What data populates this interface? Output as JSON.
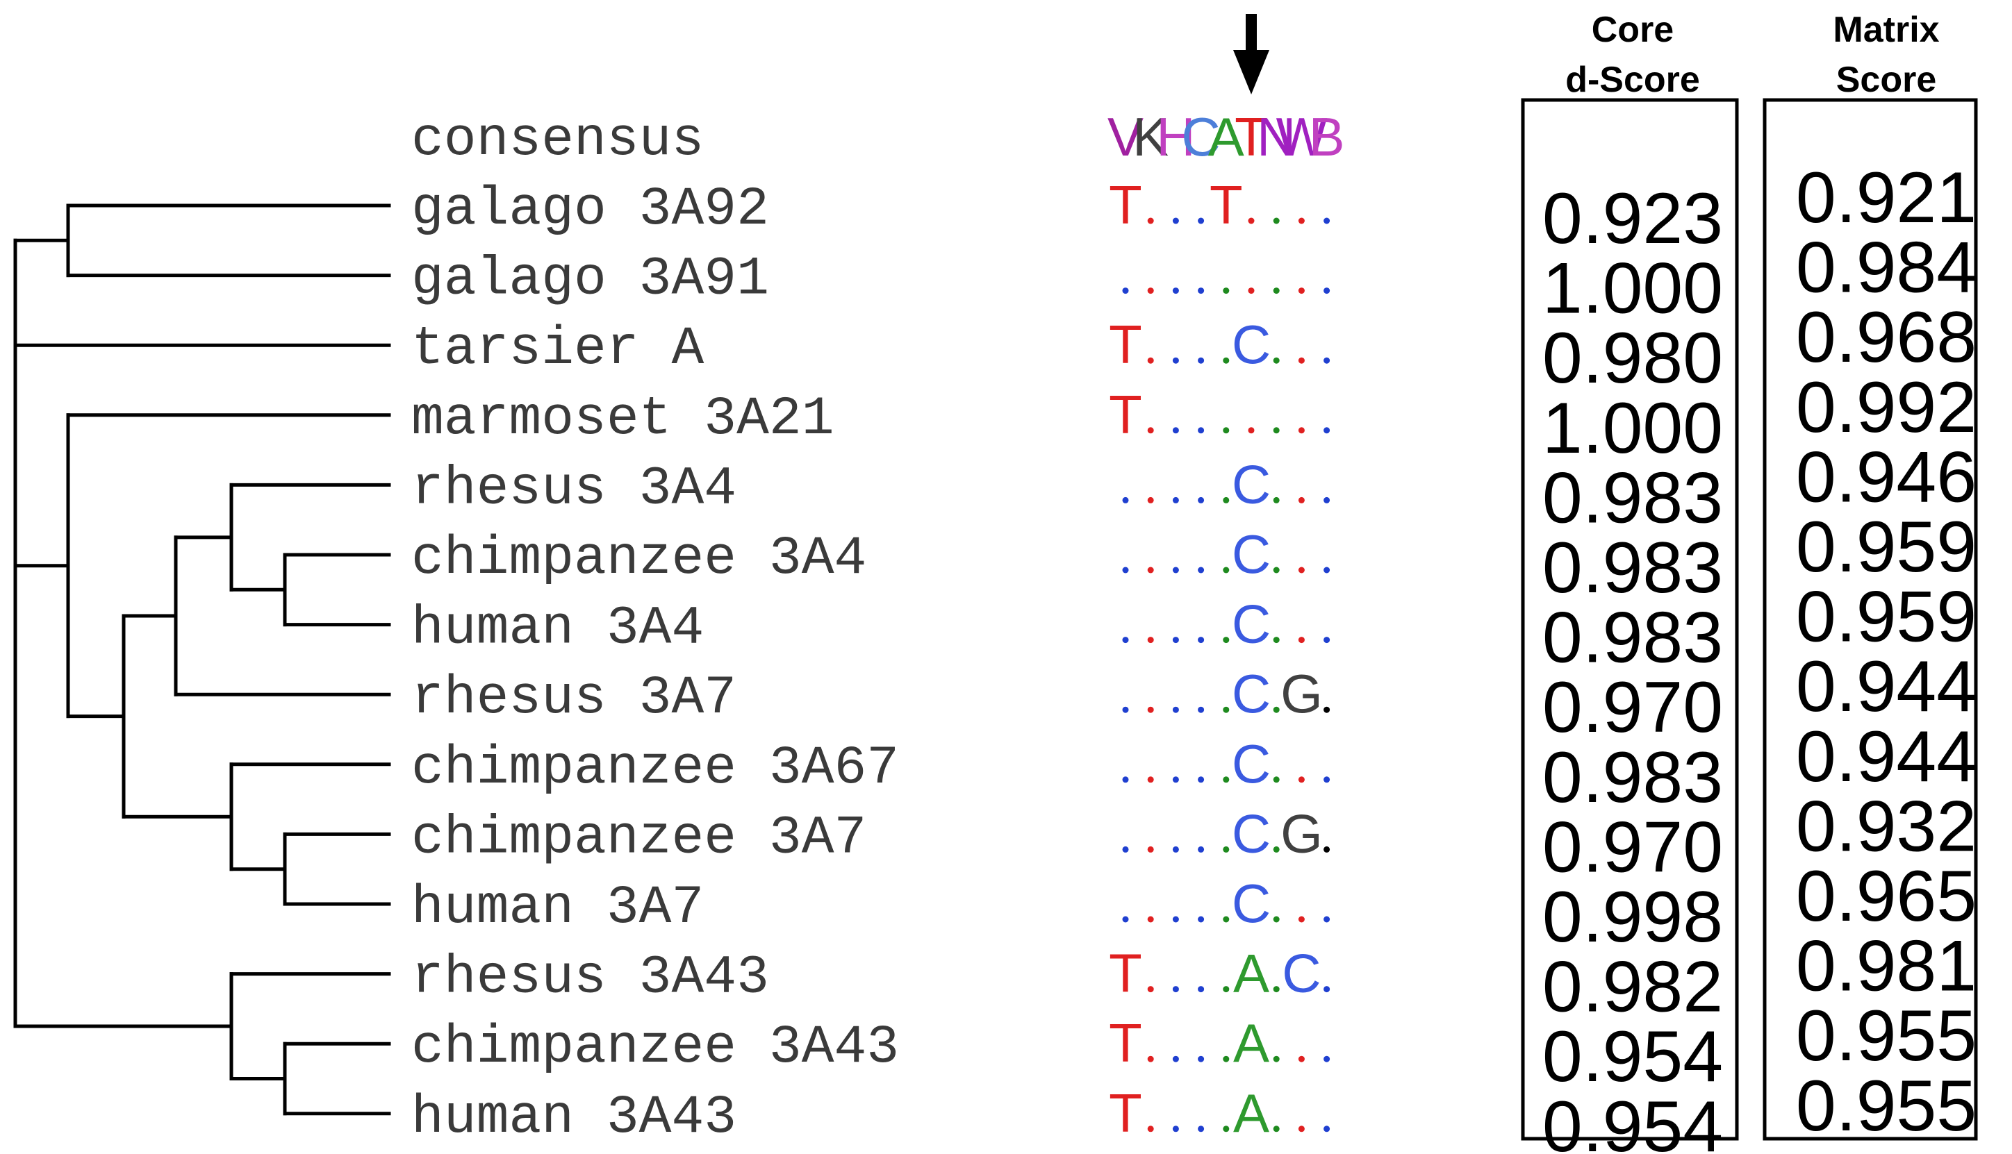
{
  "consensus": {
    "label": "consensus",
    "letters": [
      {
        "c": "V",
        "color": "#a020a0"
      },
      {
        "c": "K",
        "color": "#404040"
      },
      {
        "c": "H",
        "color": "#c040c0"
      },
      {
        "c": "C",
        "color": "#4d7fd9"
      },
      {
        "c": "A",
        "color": "#2e9a2e"
      },
      {
        "c": "T",
        "color": "#e02020"
      },
      {
        "c": "N",
        "color": "#a020c0"
      },
      {
        "c": "W",
        "color": "#a020c0"
      },
      {
        "c": "B",
        "color": "#c040c0"
      }
    ]
  },
  "colors": {
    "T": "#e02020",
    "A": "#2e9a2e",
    "C": "#3a5ae0",
    "G": "#404040",
    "dot_blue": "#1f3fd0",
    "dot_red": "#e02020",
    "dot_green": "#1e8a1e",
    "dot_black": "#000000",
    "tree": "#000000",
    "arrow": "#000000"
  },
  "dot_color_pattern": [
    "dot_blue",
    "dot_red",
    "dot_blue",
    "dot_blue",
    "dot_green",
    "dot_red",
    "dot_green",
    "dot_red",
    "dot_blue"
  ],
  "headers": {
    "core": [
      "Core",
      "d-Score"
    ],
    "matrix": [
      "Matrix",
      "Score"
    ]
  },
  "rows": [
    {
      "name": "galago 3A92",
      "seq": "T...T....",
      "core": "0.923",
      "matrix": "0.921"
    },
    {
      "name": "galago 3A91",
      "seq": ".........",
      "core": "1.000",
      "matrix": "0.984"
    },
    {
      "name": "tarsier A",
      "seq": "T....C...",
      "core": "0.980",
      "matrix": "0.968"
    },
    {
      "name": "marmoset 3A21",
      "seq": "T........",
      "core": "1.000",
      "matrix": "0.992"
    },
    {
      "name": "rhesus 3A4",
      "seq": ".....C...",
      "core": "0.983",
      "matrix": "0.946"
    },
    {
      "name": "chimpanzee 3A4",
      "seq": ".....C...",
      "core": "0.983",
      "matrix": "0.959"
    },
    {
      "name": "human 3A4",
      "seq": ".....C...",
      "core": "0.983",
      "matrix": "0.959"
    },
    {
      "name": "rhesus 3A7",
      "seq": ".....C.G.",
      "core": "0.970",
      "matrix": "0.944"
    },
    {
      "name": "chimpanzee 3A67",
      "seq": ".....C...",
      "core": "0.983",
      "matrix": "0.944"
    },
    {
      "name": "chimpanzee 3A7",
      "seq": ".....C.G.",
      "core": "0.970",
      "matrix": "0.932"
    },
    {
      "name": "human 3A7",
      "seq": ".....C...",
      "core": "0.998",
      "matrix": "0.965"
    },
    {
      "name": "rhesus 3A43",
      "seq": "T....A.C.",
      "core": "0.982",
      "matrix": "0.981"
    },
    {
      "name": "chimpanzee 3A43",
      "seq": "T....A...",
      "core": "0.954",
      "matrix": "0.955"
    },
    {
      "name": "human 3A43",
      "seq": "T....A...",
      "core": "0.954",
      "matrix": "0.955"
    }
  ],
  "arrow": {
    "position_index": 5,
    "label": "marked alignment position"
  }
}
